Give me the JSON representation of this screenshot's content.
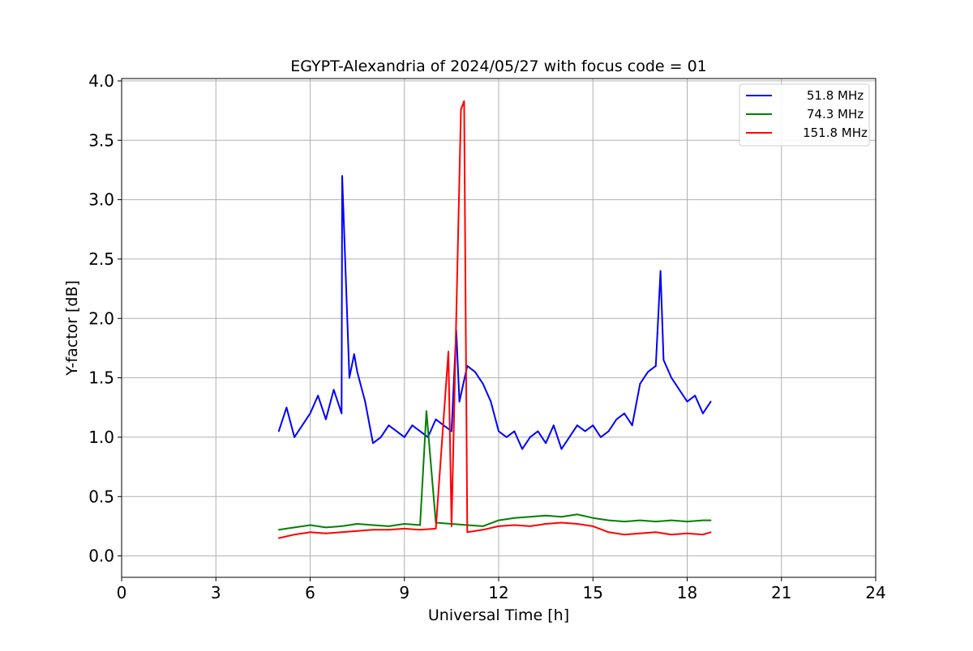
{
  "chart_data": {
    "type": "line",
    "title": "EGYPT-Alexandria of 2024/05/27 with focus code = 01",
    "xlabel": "Universal Time [h]",
    "ylabel": "Y-factor [dB]",
    "xlim": [
      0,
      24
    ],
    "ylim": [
      -0.18,
      4.02
    ],
    "xticks": [
      0,
      3,
      6,
      9,
      12,
      15,
      18,
      21,
      24
    ],
    "xtick_labels": [
      "0",
      "3",
      "6",
      "9",
      "12",
      "15",
      "18",
      "21",
      "24"
    ],
    "yticks": [
      0.0,
      0.5,
      1.0,
      1.5,
      2.0,
      2.5,
      3.0,
      3.5,
      4.0
    ],
    "ytick_labels": [
      "0.0",
      "0.5",
      "1.0",
      "1.5",
      "2.0",
      "2.5",
      "3.0",
      "3.5",
      "4.0"
    ],
    "grid": true,
    "legend_position": "top-right",
    "series": [
      {
        "name": "51.8 MHz",
        "color": "#0000ff",
        "x": [
          5.0,
          5.25,
          5.5,
          5.75,
          6.0,
          6.25,
          6.5,
          6.75,
          7.0,
          7.02,
          7.25,
          7.4,
          7.5,
          7.75,
          8.0,
          8.25,
          8.5,
          8.75,
          9.0,
          9.25,
          9.5,
          9.75,
          10.0,
          10.25,
          10.5,
          10.65,
          10.75,
          11.0,
          11.25,
          11.5,
          11.75,
          12.0,
          12.25,
          12.5,
          12.75,
          13.0,
          13.25,
          13.5,
          13.75,
          14.0,
          14.25,
          14.5,
          14.75,
          15.0,
          15.25,
          15.5,
          15.75,
          16.0,
          16.25,
          16.5,
          16.75,
          17.0,
          17.15,
          17.25,
          17.5,
          17.75,
          18.0,
          18.25,
          18.5,
          18.75
        ],
        "values": [
          1.05,
          1.25,
          1.0,
          1.1,
          1.2,
          1.35,
          1.15,
          1.4,
          1.2,
          3.2,
          1.5,
          1.7,
          1.55,
          1.3,
          0.95,
          1.0,
          1.1,
          1.05,
          1.0,
          1.1,
          1.05,
          1.0,
          1.15,
          1.1,
          1.05,
          1.9,
          1.3,
          1.6,
          1.55,
          1.45,
          1.3,
          1.05,
          1.0,
          1.05,
          0.9,
          1.0,
          1.05,
          0.95,
          1.1,
          0.9,
          1.0,
          1.1,
          1.05,
          1.1,
          1.0,
          1.05,
          1.15,
          1.2,
          1.1,
          1.45,
          1.55,
          1.6,
          2.4,
          1.65,
          1.5,
          1.4,
          1.3,
          1.35,
          1.2,
          1.3
        ]
      },
      {
        "name": "74.3 MHz",
        "color": "#008000",
        "x": [
          5.0,
          5.5,
          6.0,
          6.5,
          7.0,
          7.5,
          8.0,
          8.5,
          9.0,
          9.5,
          9.7,
          10.0,
          10.5,
          11.0,
          11.5,
          12.0,
          12.5,
          13.0,
          13.5,
          14.0,
          14.5,
          15.0,
          15.5,
          16.0,
          16.5,
          17.0,
          17.5,
          18.0,
          18.5,
          18.75
        ],
        "values": [
          0.22,
          0.24,
          0.26,
          0.24,
          0.25,
          0.27,
          0.26,
          0.25,
          0.27,
          0.26,
          1.22,
          0.28,
          0.27,
          0.26,
          0.25,
          0.3,
          0.32,
          0.33,
          0.34,
          0.33,
          0.35,
          0.32,
          0.3,
          0.29,
          0.3,
          0.29,
          0.3,
          0.29,
          0.3,
          0.3
        ]
      },
      {
        "name": "151.8 MHz",
        "color": "#ff0000",
        "x": [
          5.0,
          5.5,
          6.0,
          6.5,
          7.0,
          7.5,
          8.0,
          8.5,
          9.0,
          9.5,
          10.0,
          10.4,
          10.5,
          10.8,
          10.9,
          11.0,
          11.5,
          12.0,
          12.5,
          13.0,
          13.5,
          14.0,
          14.5,
          15.0,
          15.5,
          16.0,
          16.5,
          17.0,
          17.5,
          18.0,
          18.5,
          18.75
        ],
        "values": [
          0.15,
          0.18,
          0.2,
          0.19,
          0.2,
          0.21,
          0.22,
          0.22,
          0.23,
          0.22,
          0.23,
          1.72,
          0.25,
          3.76,
          3.83,
          0.2,
          0.22,
          0.25,
          0.26,
          0.25,
          0.27,
          0.28,
          0.27,
          0.25,
          0.2,
          0.18,
          0.19,
          0.2,
          0.18,
          0.19,
          0.18,
          0.2
        ]
      }
    ]
  }
}
